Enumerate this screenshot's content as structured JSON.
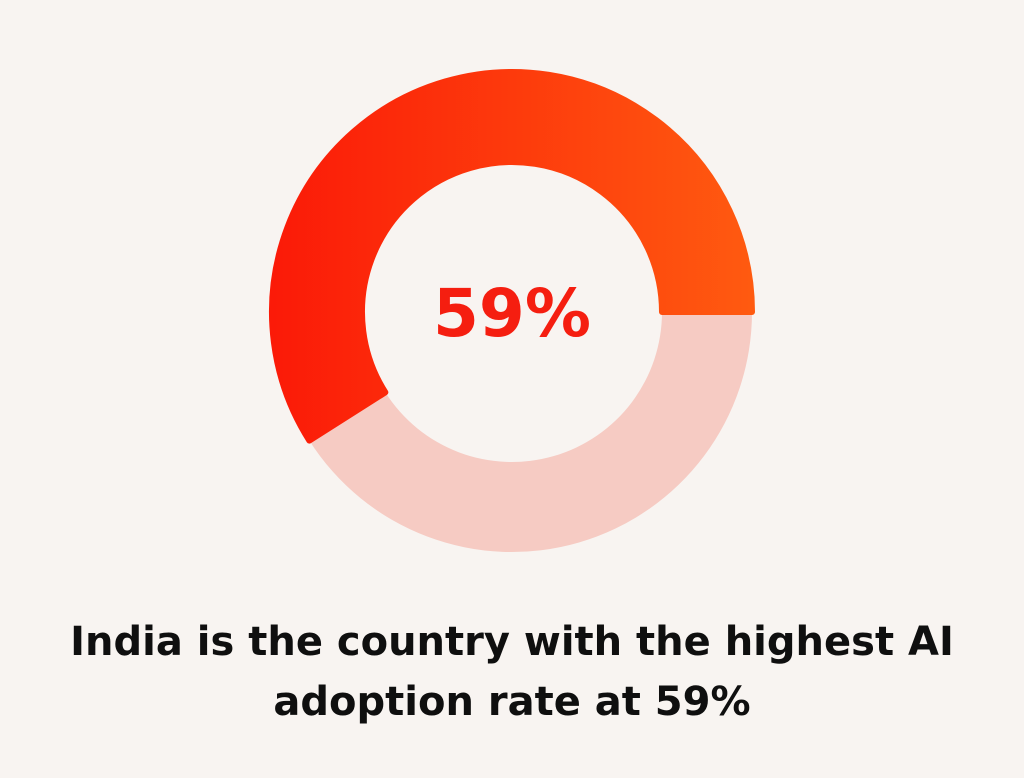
{
  "chart_data": {
    "type": "pie",
    "slices": [
      {
        "label": "",
        "value": 59,
        "color": "#fb1a08",
        "color_end": "#ff5a10"
      },
      {
        "label": "",
        "value": 41,
        "color": "#f6cbc3"
      }
    ],
    "center_label": "59%",
    "center_label_color": "#f51e10",
    "donut": true
  },
  "caption": {
    "line1": "India is the country with the highest AI",
    "line2": "adoption rate at 59%"
  }
}
